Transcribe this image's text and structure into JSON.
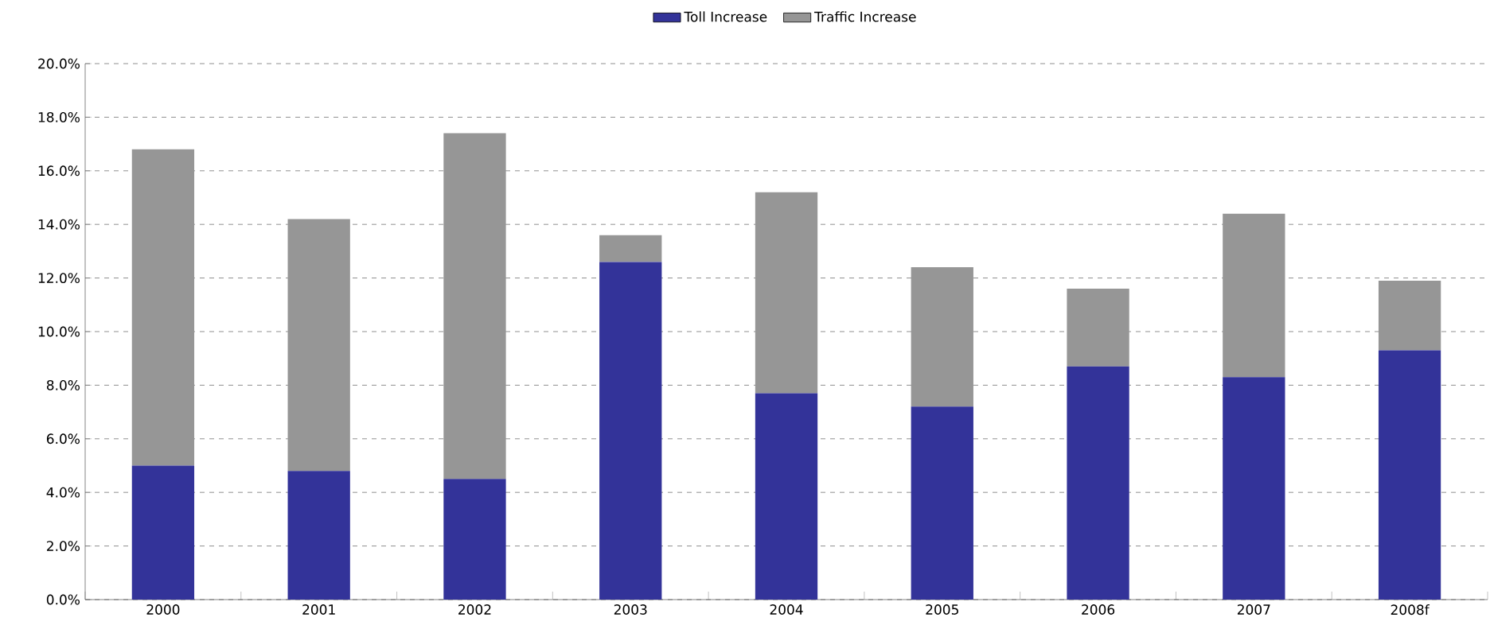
{
  "chart_data": {
    "type": "bar",
    "stacked": true,
    "categories": [
      "2000",
      "2001",
      "2002",
      "2003",
      "2004",
      "2005",
      "2006",
      "2007",
      "2008f"
    ],
    "series": [
      {
        "name": "Toll Increase",
        "color": "#333399",
        "values": [
          5.0,
          4.8,
          4.5,
          12.6,
          7.7,
          7.2,
          8.7,
          8.3,
          9.3
        ]
      },
      {
        "name": "Traffic Increase",
        "color": "#969696",
        "values": [
          11.8,
          9.4,
          12.9,
          1.0,
          7.5,
          5.2,
          2.9,
          6.1,
          2.6
        ]
      }
    ],
    "ylim": [
      0,
      20
    ],
    "yticks": [
      {
        "value": 0,
        "label": "0.0%"
      },
      {
        "value": 2,
        "label": "2.0%"
      },
      {
        "value": 4,
        "label": "4.0%"
      },
      {
        "value": 6,
        "label": "6.0%"
      },
      {
        "value": 8,
        "label": "8.0%"
      },
      {
        "value": 10,
        "label": "10.0%"
      },
      {
        "value": 12,
        "label": "12.0%"
      },
      {
        "value": 14,
        "label": "14.0%"
      },
      {
        "value": 16,
        "label": "16.0%"
      },
      {
        "value": 18,
        "label": "18.0%"
      },
      {
        "value": 20,
        "label": "20.0%"
      }
    ],
    "grid": "y",
    "legend": "top"
  }
}
